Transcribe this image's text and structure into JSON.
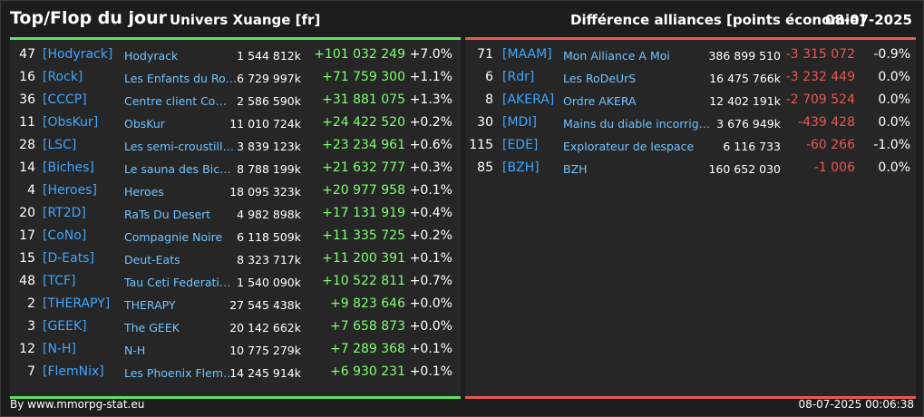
{
  "header": {
    "title": "Top/Flop du jour",
    "universe": "Univers Xuange [fr]",
    "diff_label": "Différence alliances [points économie]",
    "date": "08-07-2025"
  },
  "top": [
    {
      "rank": "47",
      "tag": "[Hodyrack]",
      "name": "Hodyrack",
      "points": "1 544 812k",
      "diff": "+101 032 249",
      "pct": "+7.0%"
    },
    {
      "rank": "16",
      "tag": "[Rock]",
      "name": "Les Enfants du Roc…",
      "points": "6 729 997k",
      "diff": "+71 759 300",
      "pct": "+1.1%"
    },
    {
      "rank": "36",
      "tag": "[CCCP]",
      "name": "Centre client Com…",
      "points": "2 586 590k",
      "diff": "+31 881 075",
      "pct": "+1.3%"
    },
    {
      "rank": "11",
      "tag": "[ObsKur]",
      "name": "ObsKur",
      "points": "11 010 724k",
      "diff": "+24 422 520",
      "pct": "+0.2%"
    },
    {
      "rank": "28",
      "tag": "[LSC]",
      "name": "Les semi-croustilla…",
      "points": "3 839 123k",
      "diff": "+23 234 961",
      "pct": "+0.6%"
    },
    {
      "rank": "14",
      "tag": "[Biches]",
      "name": "Le sauna des Biche…",
      "points": "8 788 199k",
      "diff": "+21 632 777",
      "pct": "+0.3%"
    },
    {
      "rank": "4",
      "tag": "[Heroes]",
      "name": "Heroes",
      "points": "18 095 323k",
      "diff": "+20 977 958",
      "pct": "+0.1%"
    },
    {
      "rank": "20",
      "tag": "[RT2D]",
      "name": "RaTs Du Desert",
      "points": "4 982 898k",
      "diff": "+17 131 919",
      "pct": "+0.4%"
    },
    {
      "rank": "17",
      "tag": "[CoNo]",
      "name": "Compagnie Noire",
      "points": "6 118 509k",
      "diff": "+11 335 725",
      "pct": "+0.2%"
    },
    {
      "rank": "15",
      "tag": "[D-Eats]",
      "name": "Deut-Eats",
      "points": "8 323 717k",
      "diff": "+11 200 391",
      "pct": "+0.1%"
    },
    {
      "rank": "48",
      "tag": "[TCF]",
      "name": "Tau Ceti Federatio…",
      "points": "1 540 090k",
      "diff": "+10 522 811",
      "pct": "+0.7%"
    },
    {
      "rank": "2",
      "tag": "[THERAPY]",
      "name": "THERAPY",
      "points": "27 545 438k",
      "diff": "+9 823 646",
      "pct": "+0.0%"
    },
    {
      "rank": "3",
      "tag": "[GEEK]",
      "name": "The GEEK",
      "points": "20 142 662k",
      "diff": "+7 658 873",
      "pct": "+0.0%"
    },
    {
      "rank": "12",
      "tag": "[N-H]",
      "name": "N-H",
      "points": "10 775 279k",
      "diff": "+7 289 368",
      "pct": "+0.1%"
    },
    {
      "rank": "7",
      "tag": "[FlemNix]",
      "name": "Les Phoenix Flem…",
      "points": "14 245 914k",
      "diff": "+6 930 231",
      "pct": "+0.1%"
    }
  ],
  "flop": [
    {
      "rank": "71",
      "tag": "[MAAM]",
      "name": "Mon Alliance A Moi",
      "points": "386 899 510",
      "diff": "-3 315 072",
      "pct": "-0.9%"
    },
    {
      "rank": "6",
      "tag": "[Rdr]",
      "name": "Les RoDeUrS",
      "points": "16 475 766k",
      "diff": "-3 232 449",
      "pct": "0.0%"
    },
    {
      "rank": "8",
      "tag": "[AKERA]",
      "name": "Ordre AKERA",
      "points": "12 402 191k",
      "diff": "-2 709 524",
      "pct": "0.0%"
    },
    {
      "rank": "30",
      "tag": "[MDI]",
      "name": "Mains du diable incorrigibles",
      "points": "3 676 949k",
      "diff": "-439 428",
      "pct": "0.0%"
    },
    {
      "rank": "115",
      "tag": "[EDE]",
      "name": "Explorateur de lespace",
      "points": "6 116 733",
      "diff": "-60 266",
      "pct": "-1.0%"
    },
    {
      "rank": "85",
      "tag": "[BZH]",
      "name": "BZH",
      "points": "160 652 030",
      "diff": "-1 006",
      "pct": "0.0%"
    }
  ],
  "footer": {
    "credit": "By www.mmorpg-stat.eu",
    "timestamp": "08-07-2025 00:06:38"
  },
  "colors": {
    "top_accent": "#5fe05f",
    "flop_accent": "#e85a4f",
    "tag_blue": "#3ea6ff"
  }
}
